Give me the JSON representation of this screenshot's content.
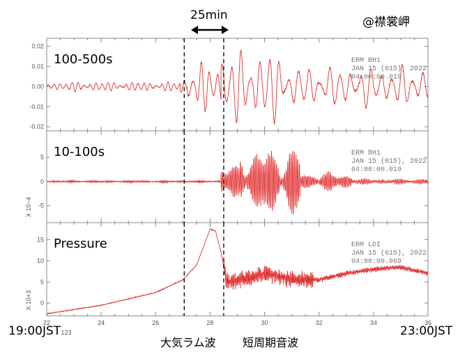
{
  "station_label": "@襟裳岬",
  "interval_label": "25min",
  "time_start_label": "19:00JST",
  "time_end_label": "23:00JST",
  "phase_labels": [
    "大気ラム波",
    "短周期音波"
  ],
  "x_tick_labels": [
    "22",
    "24",
    "26",
    "28",
    "30",
    "32",
    "34",
    "36"
  ],
  "x_tick_partial": "123",
  "colors": {
    "trace": "#e03030",
    "frame": "#888888",
    "marker": "#000000"
  },
  "chart_data": [
    {
      "type": "line",
      "panel_label": "100-500s",
      "meta": [
        "ERM   BH1",
        "JAN 15 (015), 2022",
        "04:00:00.019"
      ],
      "scale_label": "",
      "yticks": [
        0.02,
        0.01,
        0.0,
        -0.01,
        -0.02
      ],
      "ytick_labels": [
        "0.02",
        "0.01",
        "0.00",
        "-0.01",
        "-0.02"
      ],
      "ylim": [
        -0.022,
        0.024
      ],
      "xlim": [
        22,
        36
      ],
      "markers_x": [
        27.05,
        28.5
      ],
      "segments": [
        {
          "t0": 22.0,
          "t1": 26.9,
          "amp": 0.0025,
          "period": 0.22,
          "noise": 0.0004
        },
        {
          "t0": 26.9,
          "t1": 27.15,
          "amp": 0.005,
          "period": 0.25,
          "noise": 0.0005
        },
        {
          "t0": 27.15,
          "t1": 28.4,
          "amp": 0.013,
          "period": 0.3,
          "noise": 0.001
        },
        {
          "t0": 28.4,
          "t1": 30.8,
          "amp": 0.02,
          "period": 0.35,
          "noise": 0.0015
        },
        {
          "t0": 30.8,
          "t1": 36.0,
          "amp": 0.011,
          "period": 0.38,
          "noise": 0.0012
        }
      ]
    },
    {
      "type": "line",
      "panel_label": "10-100s",
      "meta": [
        "ERM   BH1",
        "JAN 15 (015), 2022",
        "04:00:00.019"
      ],
      "scale_label": "X 10−4",
      "yticks": [
        5,
        0,
        -5
      ],
      "ytick_labels": [
        "5",
        "0",
        "-5"
      ],
      "ylim": [
        -8.5,
        10.5
      ],
      "xlim": [
        22,
        36
      ],
      "markers_x": [
        27.05,
        28.5
      ],
      "segments": [
        {
          "t0": 22.0,
          "t1": 28.4,
          "amp": 0.25,
          "period": 0.05,
          "noise": 0.15
        },
        {
          "t0": 28.4,
          "t1": 29.1,
          "amp": 3.5,
          "period": 0.06,
          "noise": 0.8
        },
        {
          "t0": 29.1,
          "t1": 31.3,
          "amp": 7.5,
          "period": 0.06,
          "noise": 1.2
        },
        {
          "t0": 31.3,
          "t1": 33.2,
          "amp": 2.0,
          "period": 0.06,
          "noise": 0.6
        },
        {
          "t0": 33.2,
          "t1": 36.0,
          "amp": 0.6,
          "period": 0.06,
          "noise": 0.3
        }
      ]
    },
    {
      "type": "line",
      "panel_label": "Pressure",
      "meta": [
        "ERM   LDI",
        "JAN 15 (015), 2022",
        "04:00:00.069"
      ],
      "scale_label": "X 10+3",
      "yticks": [
        15,
        10,
        5,
        0
      ],
      "ytick_labels": [
        "15",
        "10",
        "5",
        "0"
      ],
      "ylim": [
        -3,
        19
      ],
      "xlim": [
        22,
        36
      ],
      "markers_x": [
        27.05,
        28.5
      ],
      "baseline": [
        [
          22.0,
          -2.5
        ],
        [
          24.0,
          -0.5
        ],
        [
          26.0,
          2.5
        ],
        [
          27.0,
          5.5
        ],
        [
          27.5,
          9.0
        ],
        [
          27.8,
          14.0
        ],
        [
          28.0,
          17.5
        ],
        [
          28.2,
          17.0
        ],
        [
          28.4,
          12.0
        ],
        [
          28.6,
          5.0
        ],
        [
          29.0,
          5.5
        ],
        [
          30.0,
          7.0
        ],
        [
          31.0,
          5.5
        ],
        [
          32.0,
          5.5
        ],
        [
          33.0,
          7.0
        ],
        [
          34.0,
          8.0
        ],
        [
          35.0,
          8.5
        ],
        [
          36.0,
          7.0
        ]
      ],
      "noise_segments": [
        {
          "t0": 28.5,
          "t1": 31.8,
          "amp": 2.0
        },
        {
          "t0": 31.8,
          "t1": 36.0,
          "amp": 0.6
        }
      ]
    }
  ]
}
